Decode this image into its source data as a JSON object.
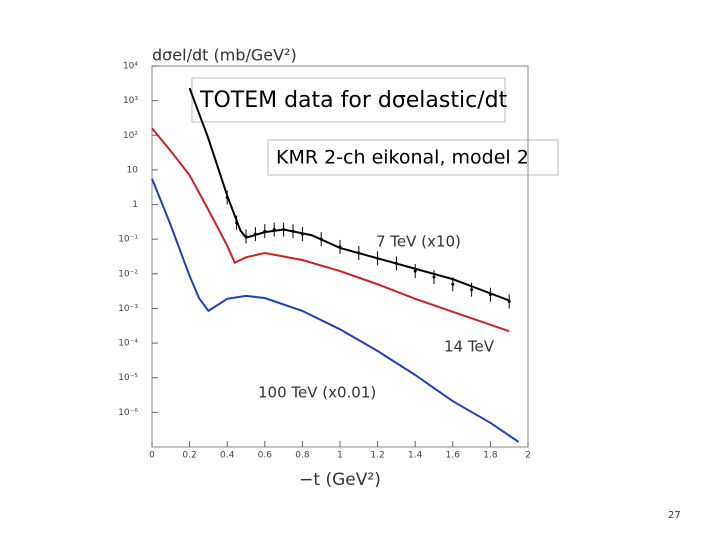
{
  "chart_data": {
    "type": "line",
    "ylabel": "dσel/dt (mb/GeV²)",
    "xlabel": "−t (GeV²)",
    "title": "TOTEM data for dσelastic/dt",
    "subtitle": "KMR 2-ch eikonal, model 2",
    "log_y": true,
    "xlim": [
      0,
      2
    ],
    "ylim": [
      1e-07,
      10000
    ],
    "xticks": [
      0,
      0.2,
      0.4,
      0.6,
      0.8,
      1,
      1.2,
      1.4,
      1.6,
      1.8,
      2
    ],
    "yticks": [
      {
        "value": 10000,
        "label": "10⁴"
      },
      {
        "value": 1000,
        "label": "10³"
      },
      {
        "value": 100,
        "label": "10²"
      },
      10,
      1,
      {
        "value": 0.1,
        "label": "10⁻¹"
      },
      {
        "value": 0.01,
        "label": "10⁻²"
      },
      {
        "value": 0.001,
        "label": "10⁻³"
      },
      {
        "value": 0.0001,
        "label": "10⁻⁴"
      },
      {
        "value": 1e-05,
        "label": "10⁻⁵"
      },
      {
        "value": 1e-06,
        "label": "10⁻⁶"
      }
    ],
    "series": [
      {
        "name": "7 TeV (x10)",
        "color": "#000000",
        "x": [
          0.2,
          0.3,
          0.4,
          0.47,
          0.5,
          0.6,
          0.7,
          0.85,
          1.0,
          1.2,
          1.4,
          1.6,
          1.9
        ],
        "values": [
          2300,
          80,
          1.8,
          0.18,
          0.11,
          0.16,
          0.19,
          0.13,
          0.056,
          0.028,
          0.014,
          0.007,
          0.0017
        ]
      },
      {
        "name": "14 TeV",
        "color": "#cc2222",
        "x": [
          0,
          0.1,
          0.2,
          0.3,
          0.4,
          0.44,
          0.5,
          0.6,
          0.8,
          1.0,
          1.2,
          1.4,
          1.6,
          1.9
        ],
        "values": [
          160,
          35,
          7,
          0.7,
          0.065,
          0.021,
          0.03,
          0.04,
          0.025,
          0.012,
          0.005,
          0.0019,
          0.0008,
          0.00022
        ]
      },
      {
        "name": "100 TeV (x0.01)",
        "color": "#1f3fbf",
        "x": [
          0,
          0.1,
          0.2,
          0.25,
          0.3,
          0.4,
          0.5,
          0.6,
          0.8,
          1.0,
          1.2,
          1.4,
          1.6,
          1.8,
          1.95
        ],
        "values": [
          5.6,
          0.25,
          0.0087,
          0.002,
          0.00085,
          0.0019,
          0.0023,
          0.002,
          0.00085,
          0.00025,
          5.9e-05,
          1.2e-05,
          2.1e-06,
          5e-07,
          1.4e-07
        ]
      }
    ],
    "data_x": [
      0.4,
      0.45,
      0.5,
      0.55,
      0.6,
      0.65,
      0.7,
      0.75,
      0.8,
      0.9,
      1.0,
      1.1,
      1.2,
      1.3,
      1.4,
      1.5,
      1.6,
      1.7,
      1.8,
      1.9
    ],
    "data_y": [
      1.6,
      0.3,
      0.12,
      0.14,
      0.17,
      0.19,
      0.19,
      0.17,
      0.14,
      0.1,
      0.06,
      0.04,
      0.028,
      0.02,
      0.012,
      0.008,
      0.005,
      0.0035,
      0.0025,
      0.0016
    ],
    "page_number": "27"
  }
}
